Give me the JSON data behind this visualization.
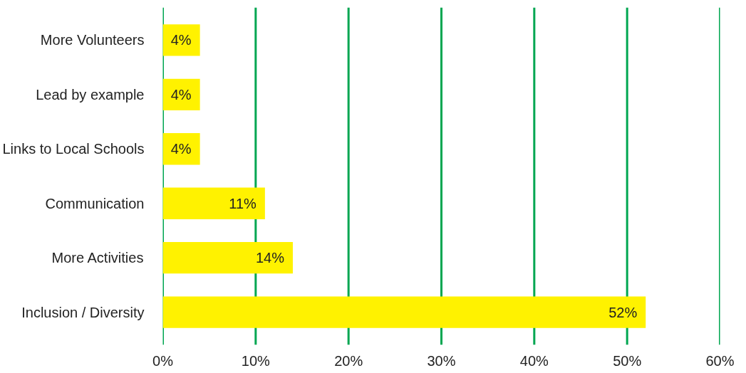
{
  "chart_data": {
    "type": "bar",
    "orientation": "horizontal",
    "categories": [
      "More Volunteers",
      "Lead by example",
      "Links to Local Schools",
      "Communication",
      "More Activities",
      "Inclusion / Diversity"
    ],
    "values": [
      4,
      4,
      4,
      11,
      14,
      52
    ],
    "value_labels": [
      "4%",
      "4%",
      "4%",
      "11%",
      "14%",
      "52%"
    ],
    "color": "#fff200",
    "xlim": [
      0,
      60
    ],
    "xticks": [
      {
        "value": 0,
        "label": "0%"
      },
      {
        "value": 10,
        "label": "10%"
      },
      {
        "value": 20,
        "label": "20%"
      },
      {
        "value": 30,
        "label": "30%"
      },
      {
        "value": 40,
        "label": "40%"
      },
      {
        "value": 50,
        "label": "50%"
      },
      {
        "value": 60,
        "label": "60%"
      }
    ],
    "grid": "x"
  }
}
